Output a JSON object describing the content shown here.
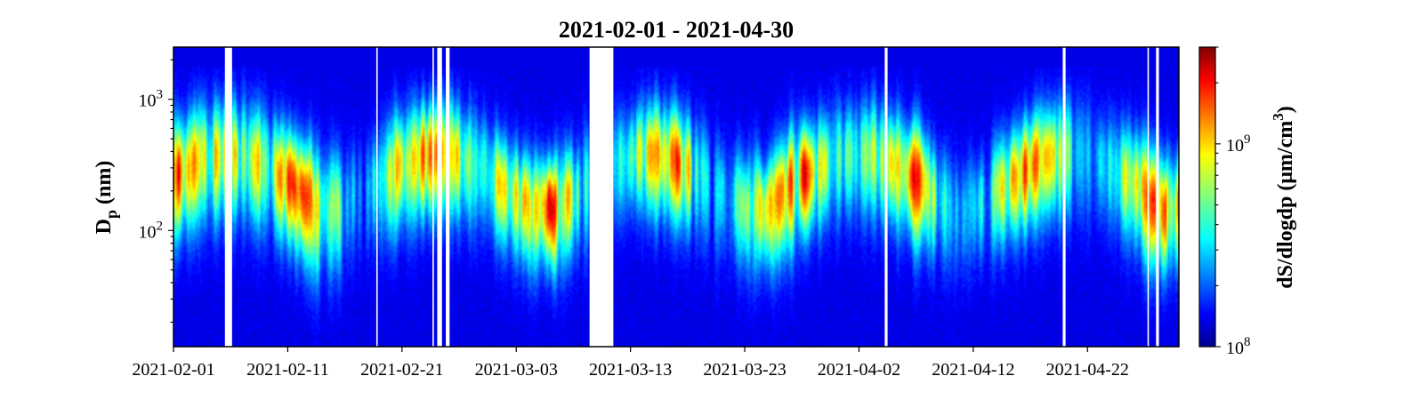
{
  "chart_data": {
    "type": "heatmap",
    "title": "2021-02-01 - 2021-04-30",
    "ylabel_main": "D",
    "ylabel_sub": "p",
    "ylabel_unit": " (nm)",
    "colorbar_label_main": "dS/dlogdp (μm/cm",
    "colorbar_label_sup": "3",
    "colorbar_label_end": ")",
    "x_range": [
      "2021-02-01",
      "2021-04-30"
    ],
    "x_ticks": [
      "2021-02-01",
      "2021-02-11",
      "2021-02-21",
      "2021-03-03",
      "2021-03-13",
      "2021-03-23",
      "2021-04-02",
      "2021-04-12",
      "2021-04-22"
    ],
    "y_scale": "log",
    "y_range": [
      13,
      2500
    ],
    "y_ticks": [
      {
        "value": 100,
        "base": "10",
        "exp": "2"
      },
      {
        "value": 1000,
        "base": "10",
        "exp": "3"
      }
    ],
    "color_scale": "log",
    "color_range": [
      100000000,
      3000000000
    ],
    "colorbar_ticks": [
      {
        "value": 100000000,
        "base": "10",
        "exp": "8"
      },
      {
        "value": 1000000000,
        "base": "10",
        "exp": "9"
      }
    ],
    "colormap": "jet",
    "data_gaps": [
      {
        "start": "2021-02-05 12:00",
        "end": "2021-02-06 03:00"
      },
      {
        "start": "2021-02-18 18:00",
        "end": "2021-02-18 21:00"
      },
      {
        "start": "2021-02-23 16:00",
        "end": "2021-02-23 19:00"
      },
      {
        "start": "2021-02-24 02:00",
        "end": "2021-02-24 12:00"
      },
      {
        "start": "2021-02-24 20:00",
        "end": "2021-02-25 04:00"
      },
      {
        "start": "2021-03-09 10:00",
        "end": "2021-03-11 12:00"
      },
      {
        "start": "2021-04-04 06:00",
        "end": "2021-04-04 12:00"
      },
      {
        "start": "2021-04-19 20:00",
        "end": "2021-04-20 02:00"
      },
      {
        "start": "2021-04-27 06:00",
        "end": "2021-04-27 09:00"
      },
      {
        "start": "2021-04-28 00:00",
        "end": "2021-04-28 06:00"
      }
    ],
    "colors": {
      "background": "#ffffff",
      "axis": "#000000",
      "low": "#00008f",
      "high": "#800000"
    }
  }
}
